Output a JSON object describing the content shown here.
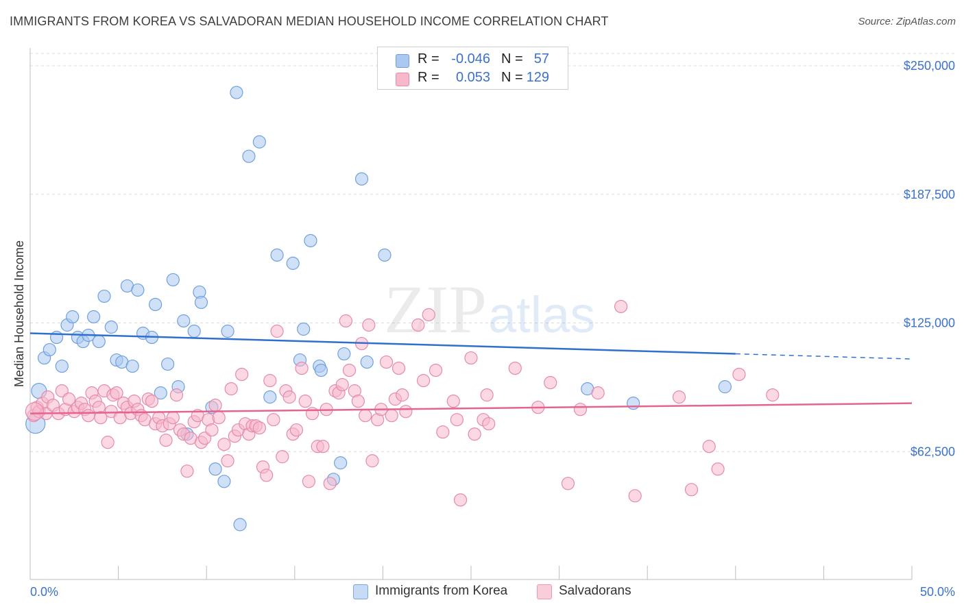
{
  "header": {
    "title": "IMMIGRANTS FROM KOREA VS SALVADORAN MEDIAN HOUSEHOLD INCOME CORRELATION CHART",
    "source": "Source: ZipAtlas.com"
  },
  "watermark": {
    "zip": "ZIP",
    "atlas": "atlas"
  },
  "legend": {
    "rows": [
      {
        "r_label": "R =",
        "r_value": "-0.046",
        "n_label": "N =",
        "n_value": "57",
        "color": "#aac8f0",
        "stroke": "#6f9fe0"
      },
      {
        "r_label": "R =",
        "r_value": "0.053",
        "n_label": "N =",
        "n_value": "129",
        "color": "#f7b8cc",
        "stroke": "#e58aa8"
      }
    ]
  },
  "bottom_legend": {
    "items": [
      {
        "label": "Immigrants from Korea",
        "color": "#c5dbf6",
        "stroke": "#7aa6e0"
      },
      {
        "label": "Salvadorans",
        "color": "#f9cdda",
        "stroke": "#e89ab4"
      }
    ]
  },
  "chart_data": {
    "type": "scatter",
    "title": "IMMIGRANTS FROM KOREA VS SALVADORAN MEDIAN HOUSEHOLD INCOME CORRELATION CHART",
    "xlabel": "",
    "ylabel": "Median Household Income",
    "xlim": [
      0,
      50
    ],
    "ylim": [
      0,
      260000
    ],
    "x_ticks": [
      "0.0%",
      "50.0%"
    ],
    "y_ticks": [
      {
        "value": 62500,
        "label": "$62,500"
      },
      {
        "value": 125000,
        "label": "$125,000"
      },
      {
        "value": 187500,
        "label": "$187,500"
      },
      {
        "value": 250000,
        "label": "$250,000"
      }
    ],
    "grid": true,
    "series": [
      {
        "name": "Immigrants from Korea",
        "color": "#aac8f0",
        "stroke": "#6f9fe0",
        "line_color": "#2f6fcf",
        "trend": {
          "x0": 0,
          "y0": 120000,
          "x1": 40,
          "y1": 110000,
          "dash_to_x": 50,
          "dash_to_y": 107500
        },
        "points": [
          [
            0.3,
            76000
          ],
          [
            0.5,
            92000
          ],
          [
            0.8,
            108000
          ],
          [
            1.1,
            112000
          ],
          [
            1.5,
            118000
          ],
          [
            1.8,
            104000
          ],
          [
            2.1,
            124000
          ],
          [
            2.4,
            128000
          ],
          [
            2.7,
            118000
          ],
          [
            3.0,
            116000
          ],
          [
            3.3,
            119000
          ],
          [
            3.6,
            128000
          ],
          [
            3.9,
            116000
          ],
          [
            4.2,
            138000
          ],
          [
            4.6,
            123000
          ],
          [
            4.9,
            107000
          ],
          [
            5.2,
            106000
          ],
          [
            5.5,
            143000
          ],
          [
            5.8,
            104000
          ],
          [
            6.1,
            141000
          ],
          [
            6.4,
            120000
          ],
          [
            6.9,
            118000
          ],
          [
            7.1,
            134000
          ],
          [
            7.4,
            91000
          ],
          [
            7.8,
            105000
          ],
          [
            8.1,
            146000
          ],
          [
            8.4,
            94000
          ],
          [
            8.7,
            126000
          ],
          [
            8.9,
            71000
          ],
          [
            9.3,
            121000
          ],
          [
            9.6,
            140000
          ],
          [
            9.7,
            135000
          ],
          [
            10.3,
            84000
          ],
          [
            10.5,
            54000
          ],
          [
            11.0,
            48000
          ],
          [
            11.2,
            121000
          ],
          [
            11.7,
            237000
          ],
          [
            11.9,
            27000
          ],
          [
            12.4,
            206000
          ],
          [
            13.0,
            213000
          ],
          [
            13.6,
            89000
          ],
          [
            14.0,
            158000
          ],
          [
            14.9,
            154000
          ],
          [
            15.3,
            107000
          ],
          [
            15.5,
            122000
          ],
          [
            15.9,
            165000
          ],
          [
            16.4,
            104000
          ],
          [
            16.5,
            102000
          ],
          [
            17.2,
            49000
          ],
          [
            17.6,
            57000
          ],
          [
            17.8,
            110000
          ],
          [
            18.8,
            195000
          ],
          [
            19.1,
            106000
          ],
          [
            20.1,
            158000
          ],
          [
            31.6,
            93000
          ],
          [
            34.2,
            86000
          ],
          [
            39.4,
            94000
          ]
        ]
      },
      {
        "name": "Salvadorans",
        "color": "#f7b8cc",
        "stroke": "#e58aa8",
        "line_color": "#e4648e",
        "trend": {
          "x0": 0,
          "y0": 81000,
          "x1": 50,
          "y1": 86000
        },
        "points": [
          [
            0.2,
            80000
          ],
          [
            0.4,
            84000
          ],
          [
            0.5,
            82000
          ],
          [
            0.7,
            86000
          ],
          [
            0.9,
            81000
          ],
          [
            1.0,
            89000
          ],
          [
            1.3,
            85000
          ],
          [
            1.6,
            81000
          ],
          [
            1.8,
            92000
          ],
          [
            2.0,
            83000
          ],
          [
            2.2,
            88000
          ],
          [
            2.5,
            82000
          ],
          [
            2.7,
            84000
          ],
          [
            2.9,
            86000
          ],
          [
            3.1,
            83000
          ],
          [
            3.3,
            80000
          ],
          [
            3.5,
            91000
          ],
          [
            3.7,
            87000
          ],
          [
            3.9,
            84000
          ],
          [
            4.0,
            79000
          ],
          [
            4.2,
            92000
          ],
          [
            4.4,
            67000
          ],
          [
            4.6,
            82000
          ],
          [
            4.7,
            90000
          ],
          [
            4.9,
            91000
          ],
          [
            5.1,
            79000
          ],
          [
            5.3,
            86000
          ],
          [
            5.5,
            84000
          ],
          [
            5.7,
            81000
          ],
          [
            5.9,
            87000
          ],
          [
            6.1,
            83000
          ],
          [
            6.3,
            80000
          ],
          [
            6.5,
            78000
          ],
          [
            6.7,
            88000
          ],
          [
            6.9,
            87000
          ],
          [
            7.1,
            76000
          ],
          [
            7.3,
            79000
          ],
          [
            7.5,
            75000
          ],
          [
            7.7,
            68000
          ],
          [
            7.9,
            76000
          ],
          [
            8.1,
            79000
          ],
          [
            8.3,
            90000
          ],
          [
            8.5,
            73000
          ],
          [
            8.7,
            71000
          ],
          [
            8.9,
            53000
          ],
          [
            9.1,
            69000
          ],
          [
            9.3,
            77000
          ],
          [
            9.5,
            80000
          ],
          [
            9.7,
            67000
          ],
          [
            9.9,
            69000
          ],
          [
            10.1,
            78000
          ],
          [
            10.3,
            73000
          ],
          [
            10.5,
            85000
          ],
          [
            10.7,
            79000
          ],
          [
            11.0,
            66000
          ],
          [
            11.2,
            58000
          ],
          [
            11.4,
            93000
          ],
          [
            11.6,
            70000
          ],
          [
            11.8,
            73000
          ],
          [
            12.0,
            100000
          ],
          [
            12.2,
            76000
          ],
          [
            12.4,
            71000
          ],
          [
            12.6,
            75000
          ],
          [
            12.8,
            75000
          ],
          [
            13.0,
            74000
          ],
          [
            13.2,
            55000
          ],
          [
            13.4,
            51000
          ],
          [
            13.6,
            97000
          ],
          [
            13.8,
            78000
          ],
          [
            14.0,
            121000
          ],
          [
            14.3,
            60000
          ],
          [
            14.5,
            92000
          ],
          [
            14.7,
            89000
          ],
          [
            14.9,
            71000
          ],
          [
            15.1,
            73000
          ],
          [
            15.4,
            103000
          ],
          [
            15.6,
            87000
          ],
          [
            15.8,
            48000
          ],
          [
            16.0,
            81000
          ],
          [
            16.3,
            65000
          ],
          [
            16.6,
            65000
          ],
          [
            16.8,
            83000
          ],
          [
            17.0,
            47000
          ],
          [
            17.3,
            92000
          ],
          [
            17.5,
            91000
          ],
          [
            17.7,
            95000
          ],
          [
            17.9,
            126000
          ],
          [
            18.1,
            102000
          ],
          [
            18.4,
            92000
          ],
          [
            18.6,
            87000
          ],
          [
            18.8,
            115000
          ],
          [
            19.0,
            80000
          ],
          [
            19.2,
            124000
          ],
          [
            19.4,
            58000
          ],
          [
            19.7,
            78000
          ],
          [
            19.9,
            83000
          ],
          [
            20.2,
            106000
          ],
          [
            20.5,
            80000
          ],
          [
            20.7,
            88000
          ],
          [
            20.9,
            103000
          ],
          [
            21.1,
            90000
          ],
          [
            21.3,
            82000
          ],
          [
            22.0,
            124000
          ],
          [
            22.3,
            97000
          ],
          [
            22.6,
            129000
          ],
          [
            23.0,
            102000
          ],
          [
            23.4,
            72000
          ],
          [
            24.0,
            87000
          ],
          [
            24.2,
            78000
          ],
          [
            24.4,
            39000
          ],
          [
            25.0,
            108000
          ],
          [
            25.2,
            71000
          ],
          [
            25.7,
            78000
          ],
          [
            25.9,
            90000
          ],
          [
            26.0,
            76000
          ],
          [
            27.5,
            103000
          ],
          [
            28.8,
            84000
          ],
          [
            29.5,
            96000
          ],
          [
            30.5,
            47000
          ],
          [
            31.2,
            83000
          ],
          [
            32.2,
            91000
          ],
          [
            33.5,
            133000
          ],
          [
            34.3,
            41000
          ],
          [
            36.8,
            89000
          ],
          [
            37.5,
            44000
          ],
          [
            38.5,
            65000
          ],
          [
            39.0,
            54000
          ],
          [
            40.2,
            100000
          ],
          [
            42.1,
            90000
          ]
        ]
      }
    ]
  }
}
